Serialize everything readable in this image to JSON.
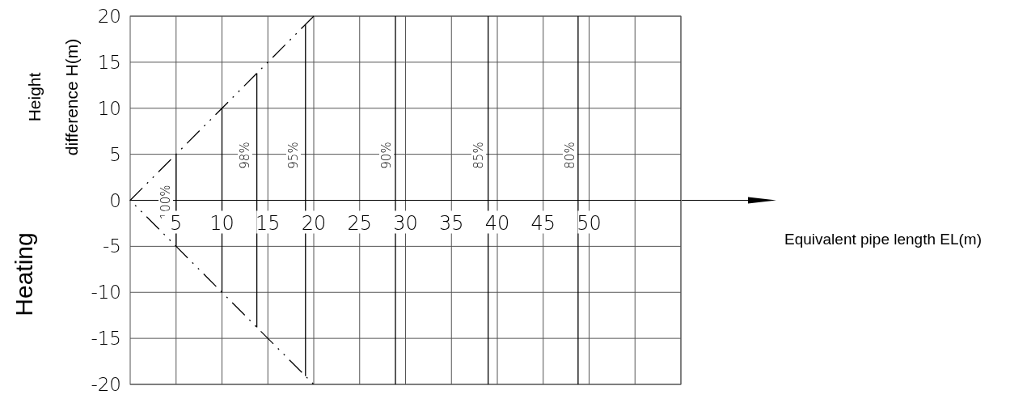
{
  "chart_data": {
    "type": "line",
    "title": "Heating",
    "ylabel": "Height difference H(m)",
    "xlim": [
      0,
      60
    ],
    "ylim": [
      -20,
      20
    ],
    "xticks": [
      5,
      10,
      15,
      20,
      25,
      30,
      35,
      40,
      45,
      50,
      {
        "value": 55,
        "label": null
      },
      {
        "value": 60,
        "label": null
      }
    ],
    "yticks": [
      -20,
      -15,
      -10,
      -5,
      0,
      5,
      10,
      15,
      20
    ],
    "grid": true,
    "marker": "none",
    "series": [
      {
        "color": "#000000",
        "x": [
          20,
          0,
          20
        ],
        "values": [
          20,
          0,
          -20
        ],
        "line_style": "dashed"
      },
      {
        "color": "#000000",
        "x": [
          5,
          5
        ],
        "values": [
          5,
          -5
        ],
        "line_style": "solid"
      },
      {
        "color": "#000000",
        "x": [
          10,
          10
        ],
        "values": [
          10,
          -10
        ],
        "line_style": "solid"
      },
      {
        "color": "#000000",
        "x": [
          13.8,
          13.8
        ],
        "values": [
          13.8,
          -13.8
        ],
        "line_style": "solid"
      },
      {
        "color": "#000000",
        "x": [
          19.1,
          19.1
        ],
        "values": [
          19.1,
          -19.1
        ],
        "line_style": "solid"
      }
    ],
    "ref_lines": [
      {
        "axis": "x",
        "value": 28.9,
        "color": "#000000"
      },
      {
        "axis": "x",
        "value": 39,
        "color": "#000000"
      },
      {
        "axis": "x",
        "value": 48.8,
        "color": "#000000"
      }
    ],
    "annotations": [
      "100%",
      "98%",
      "95%",
      "90%",
      "85%",
      "80%",
      "Equivalent pipe length EL(m)"
    ]
  }
}
